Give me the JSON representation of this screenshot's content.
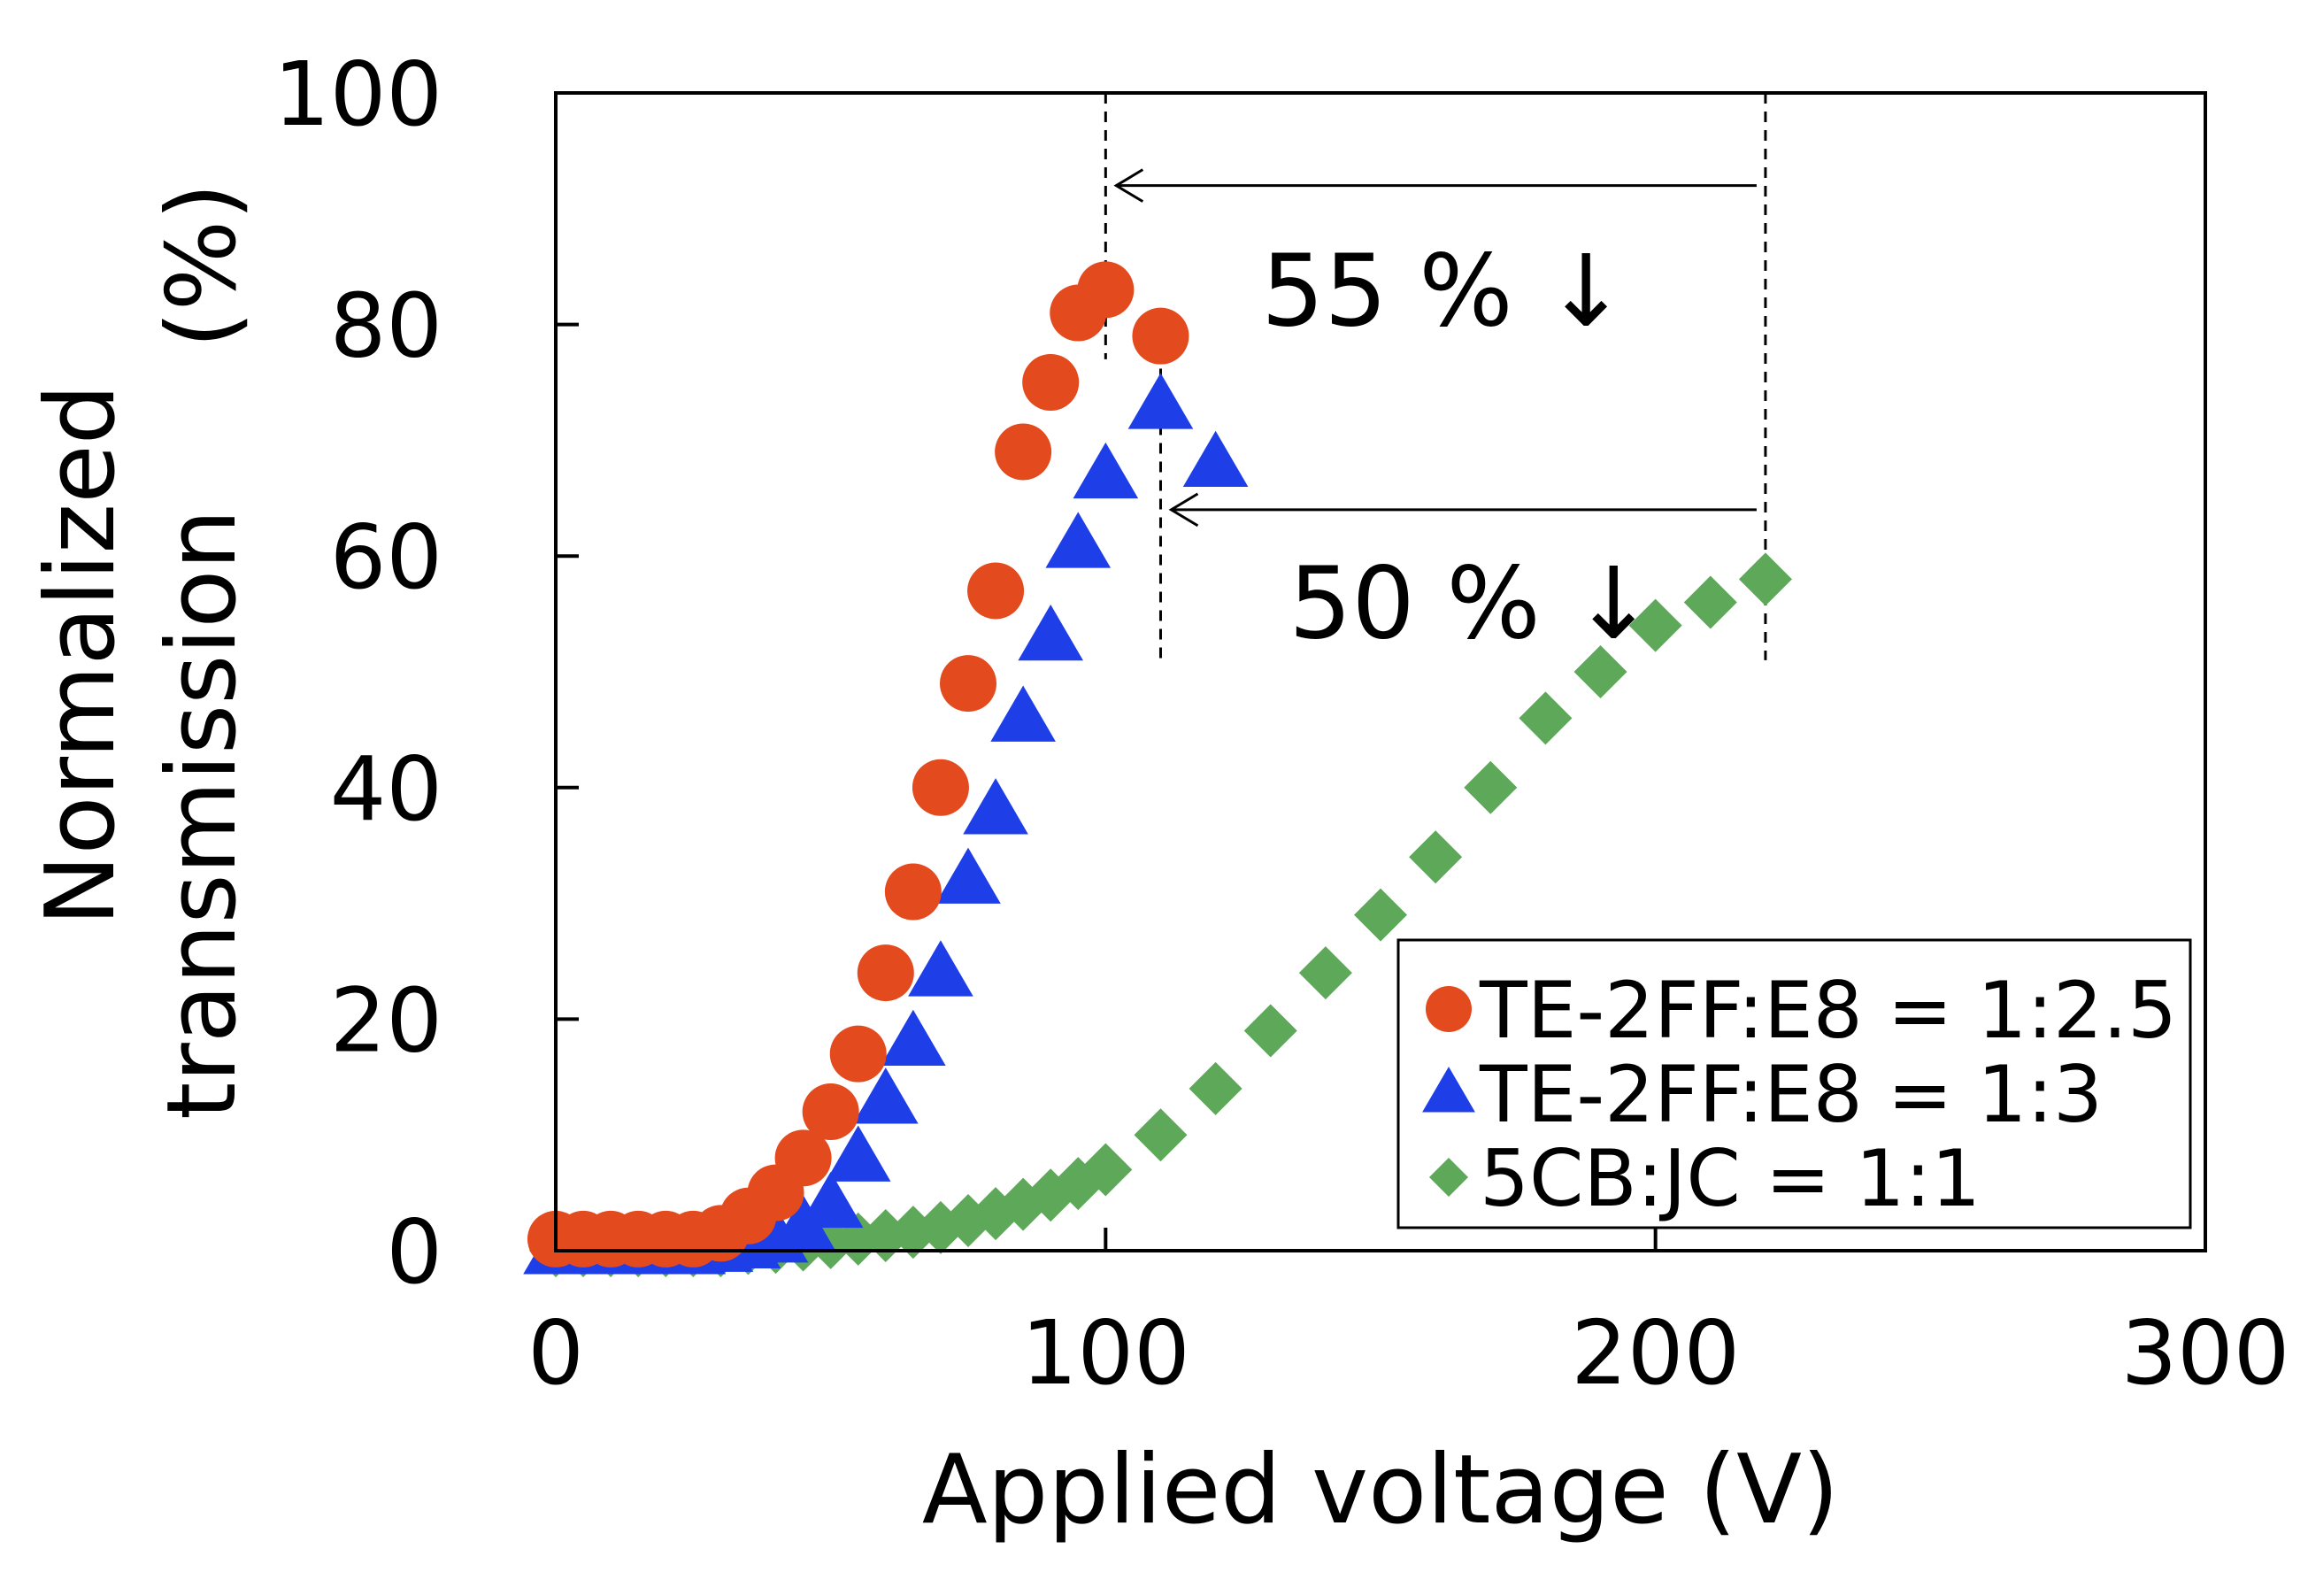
{
  "chart_data": {
    "type": "scatter",
    "title": "",
    "xlabel": "Applied voltage (V)",
    "ylabel": [
      "Normalized",
      "transmission",
      "(%)"
    ],
    "xlim": [
      0,
      300
    ],
    "ylim": [
      0,
      100
    ],
    "xticks": [
      0,
      100,
      200,
      300
    ],
    "yticks": [
      0,
      20,
      40,
      60,
      80,
      100
    ],
    "grid": false,
    "legend_position": "bottom-right",
    "series": [
      {
        "name": "TE-2FF:E8 = 1:2.5",
        "marker": "circle",
        "color": "#e34a1e",
        "points": [
          [
            0,
            1
          ],
          [
            5,
            1
          ],
          [
            10,
            1
          ],
          [
            15,
            1
          ],
          [
            20,
            1
          ],
          [
            25,
            1
          ],
          [
            30,
            1.5
          ],
          [
            35,
            3
          ],
          [
            40,
            5
          ],
          [
            45,
            8
          ],
          [
            50,
            12
          ],
          [
            55,
            17
          ],
          [
            60,
            24
          ],
          [
            65,
            31
          ],
          [
            70,
            40
          ],
          [
            75,
            49
          ],
          [
            80,
            57
          ],
          [
            85,
            69
          ],
          [
            90,
            75
          ],
          [
            95,
            81
          ],
          [
            100,
            83
          ],
          [
            110,
            79
          ]
        ]
      },
      {
        "name": "TE-2FF:E8 = 1:3",
        "marker": "triangle",
        "color": "#1e3ee8",
        "points": [
          [
            0,
            0
          ],
          [
            5,
            0
          ],
          [
            10,
            0
          ],
          [
            15,
            0
          ],
          [
            20,
            0
          ],
          [
            25,
            0
          ],
          [
            30,
            0.2
          ],
          [
            35,
            0.5
          ],
          [
            40,
            1
          ],
          [
            45,
            2
          ],
          [
            50,
            4
          ],
          [
            55,
            8
          ],
          [
            60,
            13
          ],
          [
            65,
            18
          ],
          [
            70,
            24
          ],
          [
            75,
            32
          ],
          [
            80,
            38
          ],
          [
            85,
            46
          ],
          [
            90,
            53
          ],
          [
            95,
            61
          ],
          [
            100,
            67
          ],
          [
            110,
            73
          ],
          [
            120,
            68
          ]
        ]
      },
      {
        "name": "5CB:JC = 1:1",
        "marker": "diamond",
        "color": "#5ea85a",
        "points": [
          [
            0,
            0
          ],
          [
            5,
            0
          ],
          [
            10,
            0
          ],
          [
            15,
            0
          ],
          [
            20,
            0
          ],
          [
            25,
            0
          ],
          [
            30,
            0
          ],
          [
            35,
            0.2
          ],
          [
            40,
            0.3
          ],
          [
            45,
            0.5
          ],
          [
            50,
            0.7
          ],
          [
            55,
            1
          ],
          [
            60,
            1.3
          ],
          [
            65,
            1.6
          ],
          [
            70,
            2
          ],
          [
            75,
            2.6
          ],
          [
            80,
            3.2
          ],
          [
            85,
            4
          ],
          [
            90,
            4.8
          ],
          [
            95,
            5.8
          ],
          [
            100,
            7
          ],
          [
            110,
            10
          ],
          [
            120,
            14
          ],
          [
            130,
            19
          ],
          [
            140,
            24
          ],
          [
            150,
            29
          ],
          [
            160,
            34
          ],
          [
            170,
            40
          ],
          [
            180,
            46
          ],
          [
            190,
            50
          ],
          [
            200,
            54
          ],
          [
            210,
            56
          ],
          [
            220,
            58
          ]
        ]
      }
    ],
    "annotations": [
      {
        "text": "55 % ↓",
        "from_x": 220,
        "to_x": 100,
        "arrow_y": 92,
        "label_y": 83
      },
      {
        "text": "50 % ↓",
        "from_x": 220,
        "to_x": 110,
        "arrow_y": 64,
        "label_y": 56
      }
    ],
    "reference_lines": [
      {
        "x": 100,
        "y_from": 77,
        "y_to": 100
      },
      {
        "x": 110,
        "y_from": 51,
        "y_to": 81
      },
      {
        "x": 220,
        "y_from": 51,
        "y_to": 100
      }
    ]
  }
}
